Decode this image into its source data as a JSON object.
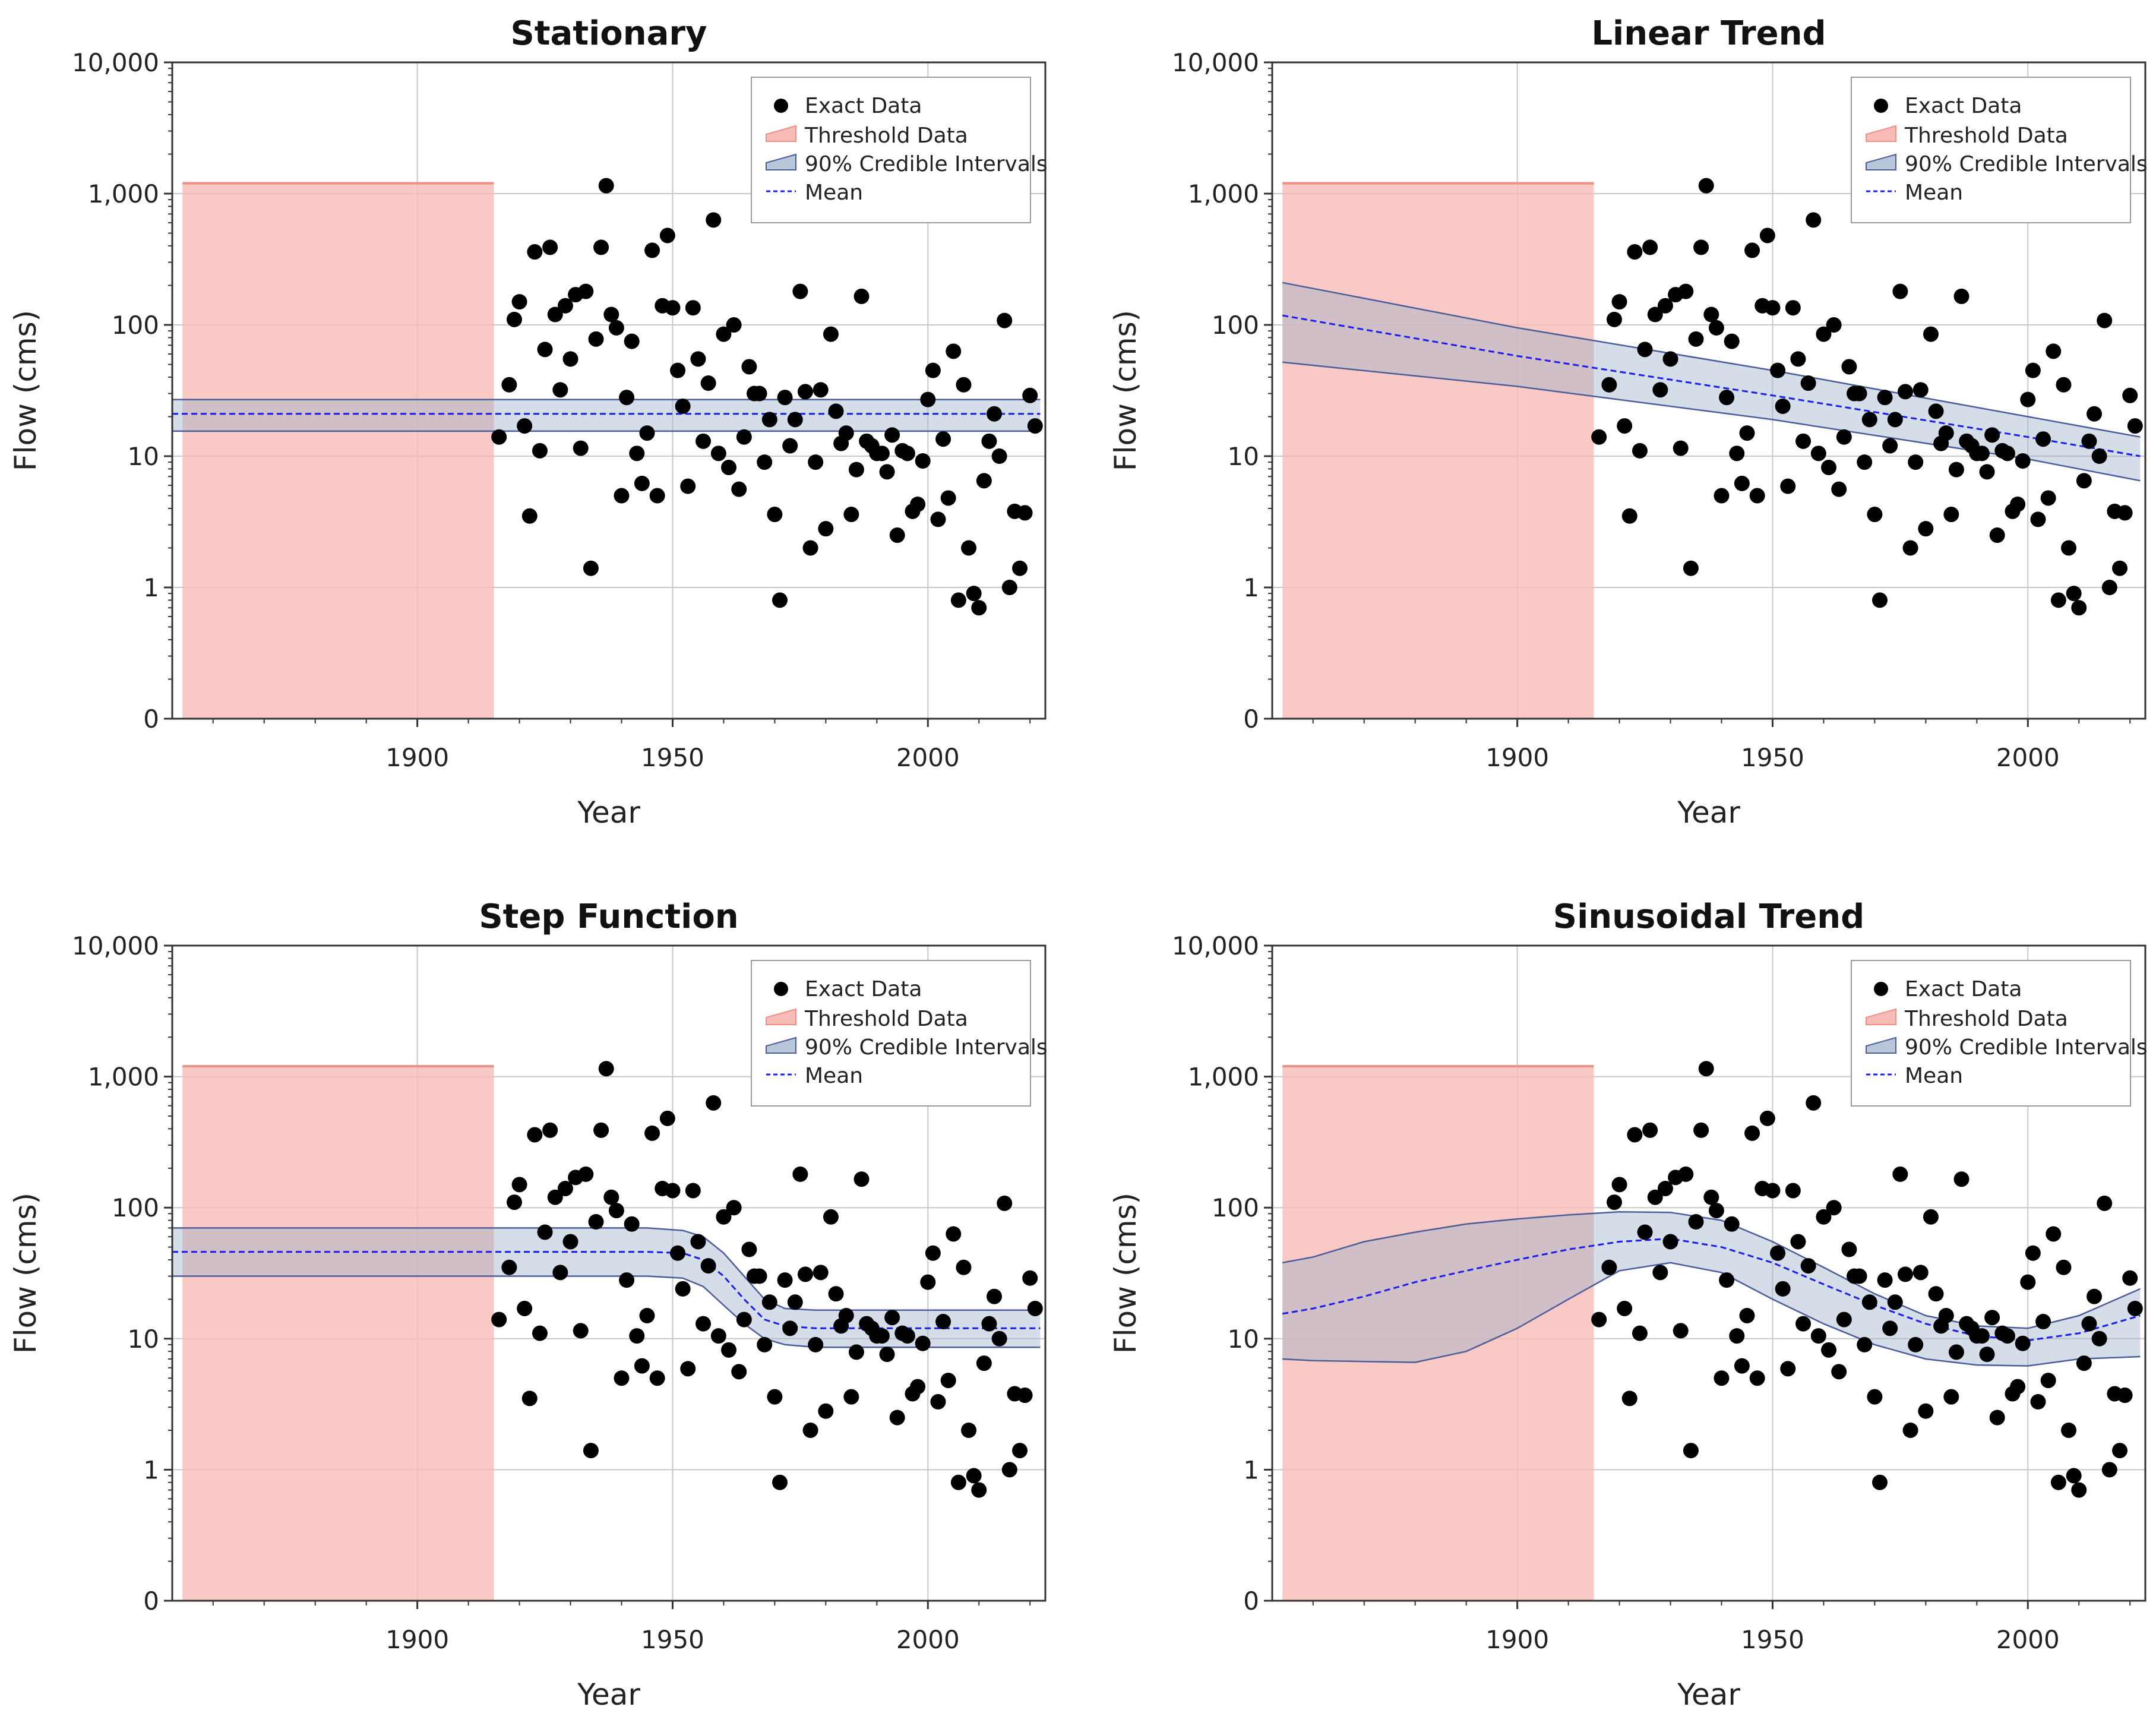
{
  "chart_data": [
    {
      "type": "scatter",
      "title": "Stationary",
      "xlabel": "Year",
      "ylabel": "Flow (cms)",
      "xlim": [
        1852,
        2023
      ],
      "yscale": "log",
      "ylim": [
        0.1,
        10000
      ],
      "xticks": [
        1900,
        1950,
        2000
      ],
      "ytick_values": [
        0.1,
        1,
        10,
        100,
        1000,
        10000
      ],
      "ytick_labels": [
        "0",
        "1",
        "10",
        "100",
        "1,000",
        "10,000"
      ],
      "legend": [
        "Exact Data",
        "Threshold Data",
        "90% Credible Intervals",
        "Mean"
      ],
      "threshold": {
        "x": [
          1854,
          1915
        ],
        "y_top": 1200
      },
      "interval": {
        "x": [
          1852,
          2022
        ],
        "lower": [
          15.5,
          15.5
        ],
        "upper": [
          27,
          27
        ],
        "mean": [
          21,
          21
        ]
      }
    },
    {
      "type": "scatter",
      "title": "Linear Trend",
      "xlabel": "Year",
      "ylabel": "Flow (cms)",
      "xlim": [
        1852,
        2023
      ],
      "yscale": "log",
      "ylim": [
        0.1,
        10000
      ],
      "xticks": [
        1900,
        1950,
        2000
      ],
      "ytick_values": [
        0.1,
        1,
        10,
        100,
        1000,
        10000
      ],
      "ytick_labels": [
        "0",
        "1",
        "10",
        "100",
        "1,000",
        "10,000"
      ],
      "legend": [
        "Exact Data",
        "Threshold Data",
        "90% Credible Intervals",
        "Mean"
      ],
      "threshold": {
        "x": [
          1854,
          1915
        ],
        "y_top": 1200
      },
      "interval": {
        "x": [
          1854,
          1900,
          1950,
          2000,
          2022
        ],
        "lower": [
          52,
          34,
          19,
          9.5,
          6.5
        ],
        "upper": [
          210,
          95,
          45,
          20,
          14
        ],
        "mean": [
          118,
          58,
          29,
          14,
          10
        ]
      }
    },
    {
      "type": "scatter",
      "title": "Step Function",
      "xlabel": "Year",
      "ylabel": "Flow (cms)",
      "xlim": [
        1852,
        2023
      ],
      "yscale": "log",
      "ylim": [
        0.1,
        10000
      ],
      "xticks": [
        1900,
        1950,
        2000
      ],
      "ytick_values": [
        0.1,
        1,
        10,
        100,
        1000,
        10000
      ],
      "ytick_labels": [
        "0",
        "1",
        "10",
        "100",
        "1,000",
        "10,000"
      ],
      "legend": [
        "Exact Data",
        "Threshold Data",
        "90% Credible Intervals",
        "Mean"
      ],
      "threshold": {
        "x": [
          1854,
          1915
        ],
        "y_top": 1200
      },
      "interval": {
        "x": [
          1852,
          1945,
          1952,
          1956,
          1960,
          1964,
          1968,
          1972,
          1978,
          2022
        ],
        "lower": [
          30,
          30,
          29,
          25,
          18,
          13,
          10,
          9,
          8.6,
          8.6
        ],
        "upper": [
          70,
          70,
          67,
          60,
          45,
          30,
          20,
          17,
          16.5,
          16.5
        ],
        "mean": [
          46,
          46,
          45,
          40,
          30,
          20,
          14,
          12.5,
          12,
          12
        ]
      }
    },
    {
      "type": "scatter",
      "title": "Sinusoidal Trend",
      "xlabel": "Year",
      "ylabel": "Flow (cms)",
      "xlim": [
        1852,
        2023
      ],
      "yscale": "log",
      "ylim": [
        0.1,
        10000
      ],
      "xticks": [
        1900,
        1950,
        2000
      ],
      "ytick_values": [
        0.1,
        1,
        10,
        100,
        1000,
        10000
      ],
      "ytick_labels": [
        "0",
        "1",
        "10",
        "100",
        "1,000",
        "10,000"
      ],
      "legend": [
        "Exact Data",
        "Threshold Data",
        "90% Credible Intervals",
        "Mean"
      ],
      "threshold": {
        "x": [
          1854,
          1915
        ],
        "y_top": 1200
      },
      "interval": {
        "x": [
          1854,
          1860,
          1870,
          1880,
          1890,
          1900,
          1910,
          1920,
          1930,
          1940,
          1950,
          1960,
          1970,
          1980,
          1990,
          2000,
          2010,
          2022
        ],
        "lower": [
          7,
          6.8,
          6.7,
          6.6,
          8,
          12,
          20,
          33,
          38,
          32,
          20,
          13,
          9,
          7,
          6.3,
          6.2,
          7,
          7.3
        ],
        "upper": [
          38,
          42,
          55,
          65,
          75,
          82,
          88,
          93,
          92,
          80,
          55,
          35,
          22,
          15,
          12.5,
          12,
          15,
          24
        ],
        "mean": [
          15.5,
          17,
          21,
          27,
          33,
          40,
          48,
          55,
          58,
          50,
          38,
          26,
          18,
          13,
          10.5,
          9.7,
          11,
          15
        ]
      }
    }
  ],
  "exact_data": {
    "x": [
      1916,
      1918,
      1919,
      1920,
      1921,
      1922,
      1923,
      1924,
      1925,
      1926,
      1927,
      1928,
      1929,
      1930,
      1931,
      1932,
      1933,
      1934,
      1935,
      1936,
      1937,
      1938,
      1939,
      1940,
      1941,
      1942,
      1943,
      1944,
      1945,
      1946,
      1947,
      1948,
      1949,
      1950,
      1951,
      1952,
      1953,
      1954,
      1955,
      1956,
      1957,
      1958,
      1959,
      1960,
      1961,
      1962,
      1963,
      1964,
      1965,
      1966,
      1967,
      1968,
      1969,
      1970,
      1971,
      1972,
      1973,
      1974,
      1975,
      1976,
      1977,
      1978,
      1979,
      1980,
      1981,
      1982,
      1983,
      1984,
      1985,
      1986,
      1987,
      1988,
      1989,
      1990,
      1991,
      1992,
      1993,
      1994,
      1995,
      1996,
      1997,
      1998,
      1999,
      2000,
      2001,
      2002,
      2003,
      2004,
      2005,
      2006,
      2007,
      2008,
      2009,
      2010,
      2011,
      2012,
      2013,
      2014,
      2015,
      2016,
      2017,
      2018,
      2019,
      2020,
      2021
    ],
    "y": [
      14,
      35,
      110,
      150,
      17,
      3.5,
      360,
      11,
      65,
      390,
      120,
      32,
      140,
      55,
      170,
      11.5,
      180,
      1.4,
      78,
      390,
      1150,
      120,
      95,
      5,
      28,
      75,
      10.5,
      6.2,
      15,
      370,
      5,
      140,
      480,
      135,
      45,
      24,
      5.9,
      135,
      55,
      13,
      36,
      630,
      10.5,
      85,
      8.2,
      100,
      5.6,
      14,
      48,
      30,
      30,
      9,
      19,
      3.6,
      0.8,
      28,
      12,
      19,
      180,
      31,
      2,
      9,
      32,
      2.8,
      85,
      22,
      12.5,
      15,
      3.6,
      7.9,
      165,
      13,
      12,
      10.5,
      10.5,
      7.6,
      14.5,
      2.5,
      11,
      10.5,
      3.8,
      4.3,
      9.2,
      27,
      45,
      3.3,
      13.5,
      4.8,
      63,
      0.8,
      35,
      2,
      0.9,
      0.7,
      6.5,
      13,
      21,
      10,
      108,
      1,
      3.8,
      1.4,
      3.7,
      29,
      17
    ]
  }
}
